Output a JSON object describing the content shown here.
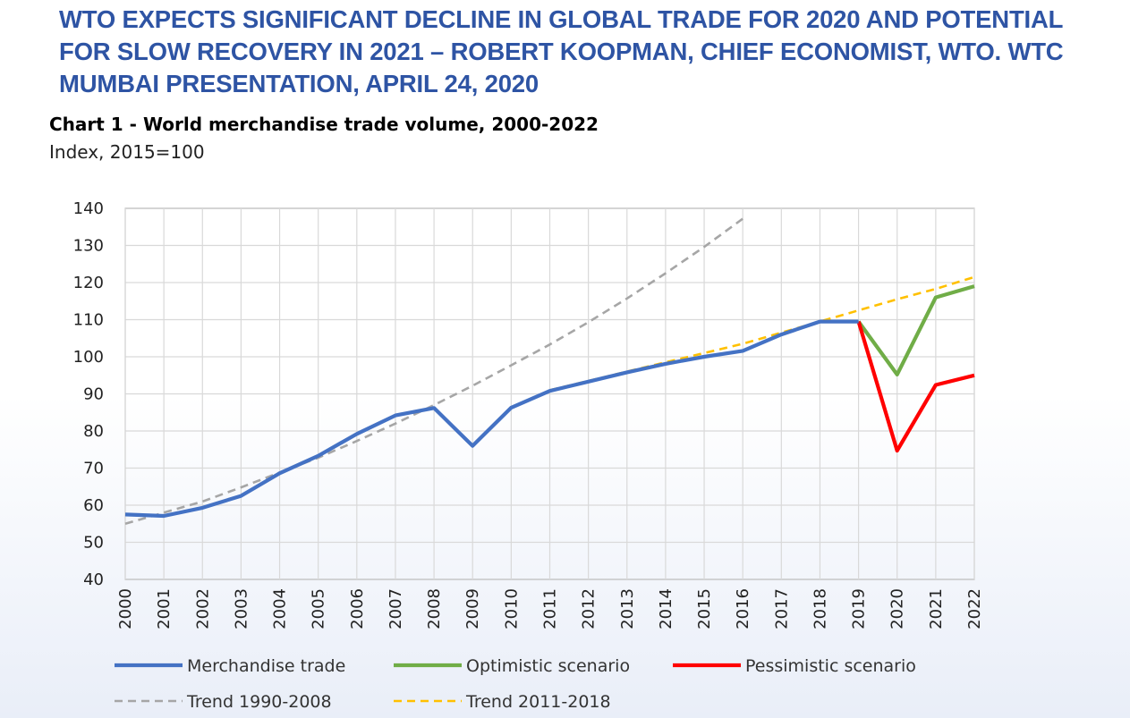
{
  "page": {
    "headline": "WTO EXPECTS SIGNIFICANT DECLINE IN GLOBAL TRADE FOR 2020 AND POTENTIAL FOR SLOW RECOVERY IN 2021 – ROBERT KOOPMAN, CHIEF ECONOMIST, WTO.  WTC MUMBAI PRESENTATION, APRIL 24, 2020"
  },
  "chart_data": {
    "type": "line",
    "title": "Chart 1 - World merchandise trade volume, 2000-2022",
    "subtitle": "Index, 2015=100",
    "xlabel": "",
    "ylabel": "",
    "ylim": [
      40,
      140
    ],
    "yticks": [
      40,
      50,
      60,
      70,
      80,
      90,
      100,
      110,
      120,
      130,
      140
    ],
    "grid": true,
    "legend_position": "bottom",
    "x": [
      2000,
      2001,
      2002,
      2003,
      2004,
      2005,
      2006,
      2007,
      2008,
      2009,
      2010,
      2011,
      2012,
      2013,
      2014,
      2015,
      2016,
      2017,
      2018,
      2019,
      2020,
      2021,
      2022
    ],
    "series": [
      {
        "name": "Trend 1990-2008",
        "color": "#a6a6a6",
        "dashed": true,
        "x": [
          2000,
          2001,
          2002,
          2003,
          2004,
          2005,
          2006,
          2007,
          2008,
          2009,
          2010,
          2011,
          2012,
          2013,
          2014,
          2015,
          2016
        ],
        "values": [
          55,
          58,
          61,
          64.8,
          68.8,
          72.8,
          77.3,
          82,
          87,
          92.2,
          97.7,
          103.3,
          109.3,
          115.7,
          122.5,
          129.6,
          137.2
        ]
      },
      {
        "name": "Trend 2011-2018",
        "color": "#ffc000",
        "dashed": true,
        "x": [
          2011,
          2012,
          2013,
          2014,
          2015,
          2016,
          2017,
          2018,
          2019,
          2020,
          2021,
          2022
        ],
        "values": [
          91,
          93.5,
          96,
          98.5,
          101,
          103.5,
          106.5,
          109.5,
          112.5,
          115.5,
          118.3,
          121.5
        ]
      },
      {
        "name": "Optimistic scenario",
        "color": "#70ad47",
        "dashed": false,
        "x": [
          2019,
          2020,
          2021,
          2022
        ],
        "values": [
          109.5,
          95.2,
          116,
          119
        ]
      },
      {
        "name": "Pessimistic scenario",
        "color": "#ff0000",
        "dashed": false,
        "x": [
          2019,
          2020,
          2021,
          2022
        ],
        "values": [
          109.5,
          74.7,
          92.4,
          95
        ]
      },
      {
        "name": "Merchandise trade",
        "color": "#4472c4",
        "dashed": false,
        "x": [
          2000,
          2001,
          2002,
          2003,
          2004,
          2005,
          2006,
          2007,
          2008,
          2009,
          2010,
          2011,
          2012,
          2013,
          2014,
          2015,
          2016,
          2017,
          2018,
          2019
        ],
        "values": [
          57.5,
          57.1,
          59.3,
          62.5,
          68.6,
          73.3,
          79.2,
          84.2,
          86.2,
          76,
          86.3,
          90.8,
          93.3,
          95.8,
          98.1,
          100,
          101.6,
          106,
          109.5,
          109.5
        ]
      }
    ],
    "legend": [
      {
        "name": "Merchandise trade",
        "color": "#4472c4",
        "dashed": false
      },
      {
        "name": "Optimistic scenario",
        "color": "#70ad47",
        "dashed": false
      },
      {
        "name": "Pessimistic scenario",
        "color": "#ff0000",
        "dashed": false
      },
      {
        "name": "Trend 1990-2008",
        "color": "#a6a6a6",
        "dashed": true
      },
      {
        "name": "Trend 2011-2018",
        "color": "#ffc000",
        "dashed": true
      }
    ]
  }
}
